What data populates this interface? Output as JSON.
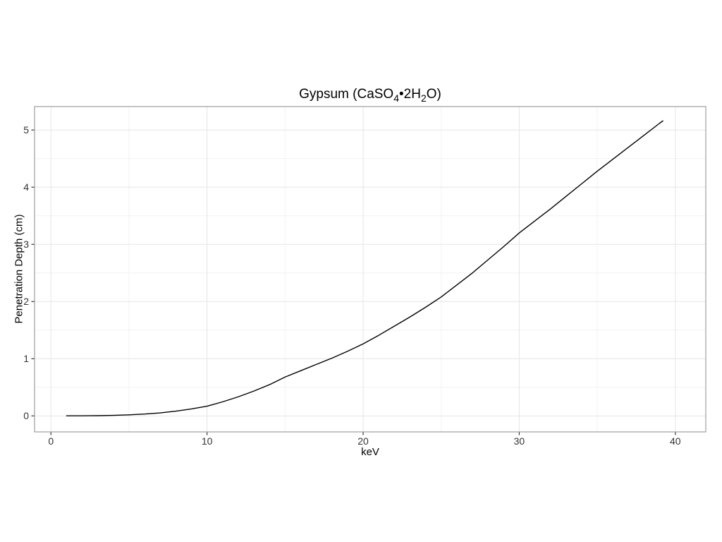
{
  "title": {
    "part1": "Gypsum (CaSO",
    "sub1": "4",
    "part2": "•2H",
    "sub2": "2",
    "part3": "O)"
  },
  "colors": {
    "curve": "#000000",
    "grid_major": "#e5e5e5",
    "grid_minor": "#f2f2f2",
    "panel_border": "#9e9e9e",
    "tick_mark": "#333333",
    "tick_label": "#333333"
  },
  "chart_data": {
    "type": "line",
    "title": "Gypsum (CaSO4•2H2O)",
    "xlabel": "keV",
    "ylabel": "Penetration Depth (cm)",
    "x_ticks": [
      0,
      10,
      20,
      30,
      40
    ],
    "x_minor_ticks": [
      5,
      15,
      25,
      35
    ],
    "y_ticks": [
      0,
      1,
      2,
      3,
      4,
      5
    ],
    "y_minor_ticks": [
      0.5,
      1.5,
      2.5,
      3.5,
      4.5
    ],
    "xlim": [
      -1.05,
      41.95
    ],
    "ylim": [
      -0.28,
      5.41
    ],
    "grid": "major+minor",
    "legend": "none",
    "series": [
      {
        "name": "Penetration Depth",
        "color": "#000000",
        "x": [
          1,
          2,
          3,
          4,
          5,
          6,
          7,
          8,
          9,
          10,
          11,
          12,
          13,
          14,
          15,
          16,
          17,
          18,
          19,
          20,
          21,
          22,
          23,
          24,
          25,
          26,
          27,
          28,
          29,
          30,
          31,
          32,
          33,
          34,
          35,
          36,
          37,
          38,
          39,
          39.2
        ],
        "y": [
          0.001,
          0.002,
          0.004,
          0.009,
          0.018,
          0.032,
          0.053,
          0.083,
          0.122,
          0.17,
          0.246,
          0.334,
          0.434,
          0.546,
          0.68,
          0.79,
          0.9,
          1.01,
          1.13,
          1.26,
          1.41,
          1.57,
          1.73,
          1.9,
          2.08,
          2.29,
          2.5,
          2.73,
          2.96,
          3.2,
          3.41,
          3.62,
          3.84,
          4.06,
          4.28,
          4.49,
          4.7,
          4.91,
          5.12,
          5.16
        ]
      }
    ]
  }
}
